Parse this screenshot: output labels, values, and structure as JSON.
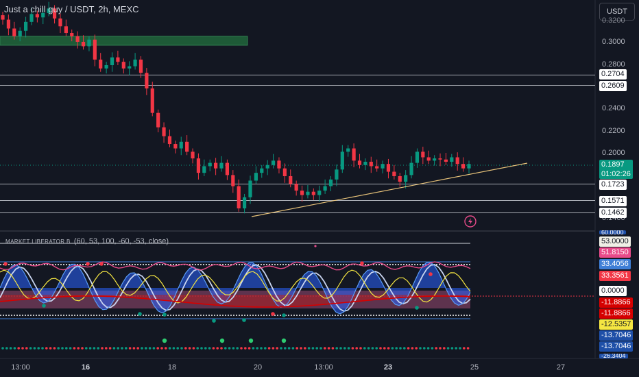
{
  "header": {
    "title": "Just a chill guy / USDT, 2h, MEXC",
    "currency": "USDT"
  },
  "price_axis": {
    "ticks": [
      "0.3000",
      "0.2800",
      "0.2400",
      "0.2200",
      "0.2000",
      "0.1400"
    ],
    "partial_top": "0.3200",
    "levels": [
      {
        "value": "0.2704",
        "bg": "#ffffff",
        "fg": "#131722"
      },
      {
        "value": "0.2609",
        "bg": "#ffffff",
        "fg": "#131722"
      },
      {
        "value": "0.1723",
        "bg": "#ffffff",
        "fg": "#131722"
      },
      {
        "value": "0.1571",
        "bg": "#ffffff",
        "fg": "#131722"
      },
      {
        "value": "0.1462",
        "bg": "#ffffff",
        "fg": "#131722"
      }
    ],
    "last_price": "0.1897",
    "countdown": "01:02:26",
    "last_color": "#089981"
  },
  "indicator": {
    "name": "MARKET LIBERATOR B",
    "params": "(60, 53, 100, -60, -53, close)",
    "partial_top": "60.0000",
    "partial_bottom": "-26.3404",
    "values": [
      {
        "value": "53.0000",
        "bg": "#f0f0e6",
        "fg": "#131722"
      },
      {
        "value": "51.8150",
        "bg": "#e84b8a",
        "fg": "#ffffff"
      },
      {
        "value": "33.4056",
        "bg": "#3f7fd6",
        "fg": "#ffffff"
      },
      {
        "value": "33.3561",
        "bg": "#f23645",
        "fg": "#ffffff"
      },
      {
        "value": "0.0000",
        "bg": "#ffffff",
        "fg": "#131722"
      },
      {
        "value": "-11.8866",
        "bg": "#d60000",
        "fg": "#ffffff"
      },
      {
        "value": "-11.8866",
        "bg": "#d60000",
        "fg": "#ffffff"
      },
      {
        "value": "-12.5357",
        "bg": "#f5e642",
        "fg": "#131722"
      },
      {
        "value": "-13.7046",
        "bg": "#1e4fa8",
        "fg": "#ffffff"
      },
      {
        "value": "-13.7046",
        "bg": "#1e4fa8",
        "fg": "#ffffff"
      }
    ]
  },
  "time_axis": {
    "ticks": [
      {
        "label": "13:00",
        "bold": false
      },
      {
        "label": "16",
        "bold": true
      },
      {
        "label": "18",
        "bold": false
      },
      {
        "label": "20",
        "bold": false
      },
      {
        "label": "13:00",
        "bold": false
      },
      {
        "label": "23",
        "bold": true
      },
      {
        "label": "25",
        "bold": false
      },
      {
        "label": "27",
        "bold": false
      }
    ]
  },
  "colors": {
    "up": "#089981",
    "down": "#f23645",
    "trendline": "#e8c37a",
    "zone": "#1e5a37",
    "background": "#131722"
  },
  "chart_data": {
    "type": "candlestick",
    "instrument": "Just a chill guy / USDT",
    "interval": "2h",
    "exchange": "MEXC",
    "price_range": [
      0.14,
      0.33
    ],
    "horizontal_levels": [
      0.2704,
      0.2609,
      0.1723,
      0.1571,
      0.1462
    ],
    "last_price": 0.1897,
    "close": [
      0.32,
      0.312,
      0.305,
      0.31,
      0.318,
      0.325,
      0.322,
      0.326,
      0.33,
      0.321,
      0.314,
      0.308,
      0.305,
      0.3,
      0.296,
      0.302,
      0.284,
      0.276,
      0.279,
      0.286,
      0.282,
      0.276,
      0.278,
      0.284,
      0.272,
      0.258,
      0.236,
      0.223,
      0.215,
      0.208,
      0.204,
      0.21,
      0.201,
      0.195,
      0.182,
      0.188,
      0.191,
      0.186,
      0.191,
      0.18,
      0.17,
      0.15,
      0.16,
      0.175,
      0.182,
      0.186,
      0.189,
      0.193,
      0.186,
      0.179,
      0.172,
      0.166,
      0.162,
      0.165,
      0.162,
      0.166,
      0.17,
      0.176,
      0.185,
      0.201,
      0.204,
      0.193,
      0.189,
      0.192,
      0.188,
      0.186,
      0.19,
      0.183,
      0.179,
      0.174,
      0.18,
      0.191,
      0.201,
      0.196,
      0.193,
      0.195,
      0.194,
      0.192,
      0.196,
      0.19,
      0.186,
      0.19
    ],
    "oscillator": {
      "upper_line": 53,
      "zero_line": 0,
      "dotted_upper": 33.4,
      "dotted_lower": -11.9,
      "last_values": [
        53.0,
        51.815,
        33.4056,
        33.3561,
        0.0,
        -11.8866,
        -12.5357,
        -13.7046
      ]
    }
  }
}
